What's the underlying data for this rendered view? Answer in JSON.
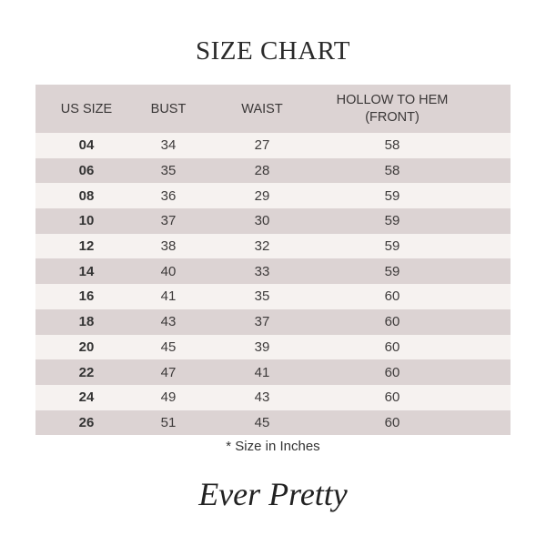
{
  "title": "SIZE CHART",
  "table": {
    "headers": [
      "US SIZE",
      "BUST",
      "WAIST",
      "HOLLOW TO HEM",
      "(FRONT)"
    ],
    "rows": [
      [
        "04",
        "34",
        "27",
        "58"
      ],
      [
        "06",
        "35",
        "28",
        "58"
      ],
      [
        "08",
        "36",
        "29",
        "59"
      ],
      [
        "10",
        "37",
        "30",
        "59"
      ],
      [
        "12",
        "38",
        "32",
        "59"
      ],
      [
        "14",
        "40",
        "33",
        "59"
      ],
      [
        "16",
        "41",
        "35",
        "60"
      ],
      [
        "18",
        "43",
        "37",
        "60"
      ],
      [
        "20",
        "45",
        "39",
        "60"
      ],
      [
        "22",
        "47",
        "41",
        "60"
      ],
      [
        "24",
        "49",
        "43",
        "60"
      ],
      [
        "26",
        "51",
        "45",
        "60"
      ]
    ]
  },
  "note": "* Size in Inches",
  "logo": "Ever Pretty",
  "colors": {
    "header_bg": "#dcd3d3",
    "alt_row_bg": "#f6f2f0"
  }
}
